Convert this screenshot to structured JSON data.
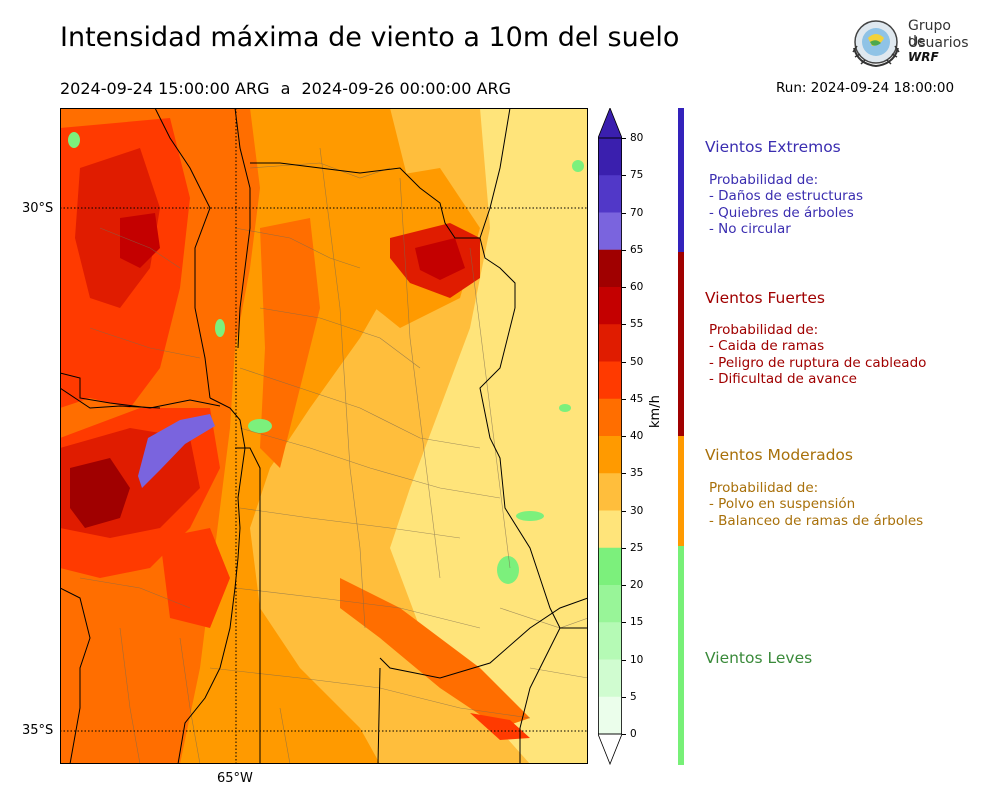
{
  "header": {
    "title": "Intensidad máxima de viento a 10m del suelo",
    "period_start": "2024-09-24 15:00:00 ARG",
    "period_separator": "a",
    "period_end": "2024-09-26 00:00:00 ARG",
    "run_label": "Run: 2024-09-24 18:00:00"
  },
  "logo": {
    "line1": "Grupo de",
    "line2": "Usuarios",
    "line3": "WRF"
  },
  "map": {
    "lat_labels": [
      "30°S",
      "35°S"
    ],
    "lon_labels": [
      "65°W"
    ],
    "features": [
      "wind-field-raster",
      "province-borders",
      "department-borders",
      "graticule"
    ]
  },
  "colorbar": {
    "unit": "km/h",
    "ticks": [
      "80",
      "75",
      "70",
      "65",
      "60",
      "55",
      "50",
      "45",
      "40",
      "35",
      "30",
      "25",
      "20",
      "15",
      "10",
      "5",
      "0"
    ],
    "colors_top_to_bottom": [
      "#3a1fae",
      "#5138c8",
      "#7a64de",
      "#a00000",
      "#c40000",
      "#e01c00",
      "#ff3a00",
      "#ff6e00",
      "#ff9a00",
      "#ffbe3c",
      "#ffe47a",
      "#7cf07c",
      "#98f598",
      "#b5fab5",
      "#d0fcd0",
      "#ebfeeb"
    ]
  },
  "severity": [
    {
      "title": "Vientos Extremos",
      "color": "#3a2db0",
      "bar_color": "#3322bb",
      "heading": "Probabilidad de:",
      "items": [
        "- Daños de estructuras",
        "- Quiebres de árboles",
        "- No circular"
      ]
    },
    {
      "title": "Vientos Fuertes",
      "color": "#a00000",
      "bar_color": "#a00000",
      "heading": "Probabilidad de:",
      "items": [
        "- Caida de ramas",
        "- Peligro de ruptura de cableado",
        "- Dificultad de avance"
      ]
    },
    {
      "title": "Vientos Moderados",
      "color": "#a8700a",
      "bar_color": "#ff9a00",
      "heading": "Probabilidad de:",
      "items": [
        "- Polvo en suspensión",
        "- Balanceo de ramas de árboles"
      ]
    },
    {
      "title": "Vientos Leves",
      "color": "#3a8a3a",
      "bar_color": "#77f077",
      "heading": "",
      "items": []
    }
  ]
}
